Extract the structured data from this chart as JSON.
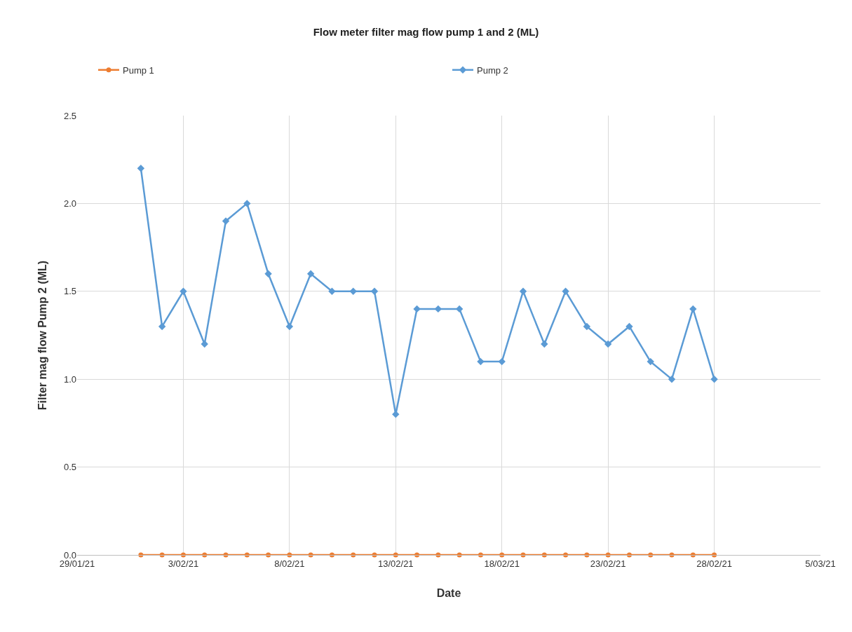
{
  "chart_data": {
    "type": "line",
    "title": "Flow meter filter mag flow pump 1 and 2 (ML)",
    "xlabel": "Date",
    "ylabel": "Filter mag flow Pump 2 (ML)",
    "x": [
      "--02-01",
      "--02-02",
      "--02-03",
      "--02-04",
      "--02-05",
      "--02-06",
      "--02-07",
      "--02-08",
      "--02-09",
      "--02-10",
      "--02-11",
      "--02-12",
      "--02-13",
      "--02-14",
      "--02-15",
      "--02-16",
      "--02-17",
      "--02-18",
      "--02-19",
      "--02-20",
      "--02-21",
      "--02-22",
      "--02-23",
      "--02-24",
      "--02-25",
      "--02-26",
      "--02-27",
      "--02-28"
    ],
    "series": [
      {
        "name": "Pump 1",
        "color": "#ed7d31",
        "marker": "circle",
        "values": [
          0,
          0,
          0,
          0,
          0,
          0,
          0,
          0,
          0,
          0,
          0,
          0,
          0,
          0,
          0,
          0,
          0,
          0,
          0,
          0,
          0,
          0,
          0,
          0,
          0,
          0,
          0,
          0
        ]
      },
      {
        "name": "Pump 2",
        "color": "#5b9bd5",
        "marker": "diamond",
        "values": [
          2.2,
          1.3,
          1.5,
          1.2,
          1.9,
          2.0,
          1.6,
          1.3,
          1.6,
          1.5,
          1.5,
          1.5,
          0.8,
          1.4,
          1.4,
          1.4,
          1.1,
          1.1,
          1.5,
          1.2,
          1.5,
          1.3,
          1.2,
          1.3,
          1.1,
          1.0,
          1.4,
          1.0
        ]
      }
    ],
    "xlim": [
      "--01-29",
      "--03-05"
    ],
    "xticks": [
      {
        "value": "--01-29",
        "label": "29/01/21"
      },
      {
        "value": "--02-03",
        "label": "3/02/21"
      },
      {
        "value": "--02-08",
        "label": "8/02/21"
      },
      {
        "value": "--02-13",
        "label": "13/02/21"
      },
      {
        "value": "--02-18",
        "label": "18/02/21"
      },
      {
        "value": "--02-23",
        "label": "23/02/21"
      },
      {
        "value": "--02-28",
        "label": "28/02/21"
      },
      {
        "value": "--03-05",
        "label": "5/03/21"
      }
    ],
    "ylim": [
      0,
      2.5
    ],
    "yticks": [
      {
        "value": 0,
        "label": "0.0"
      },
      {
        "value": 0.5,
        "label": "0.5"
      },
      {
        "value": 1,
        "label": "1.0"
      },
      {
        "value": 1.5,
        "label": "1.5"
      },
      {
        "value": 2,
        "label": "2.0"
      },
      {
        "value": 2.5,
        "label": "2.5"
      }
    ],
    "grid": true,
    "legend": "top",
    "line_style": "solid"
  }
}
